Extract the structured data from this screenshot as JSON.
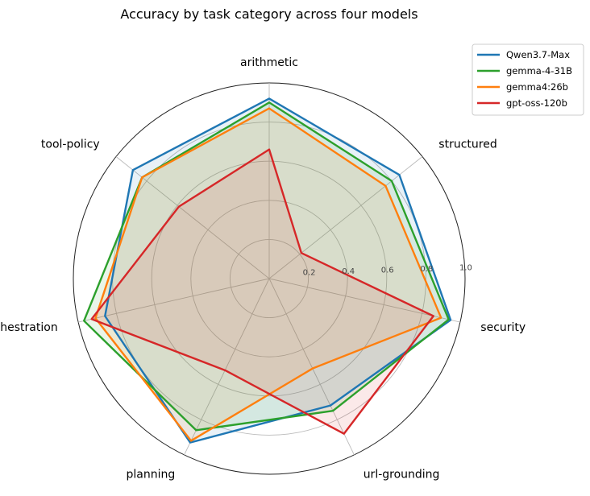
{
  "chart_data": {
    "type": "radar",
    "title": "Accuracy by task category across four models",
    "categories": [
      "arithmetic",
      "structured",
      "security",
      "url-grounding",
      "planning",
      "orchestration",
      "tool-policy"
    ],
    "rlim": [
      0,
      1.0
    ],
    "rticks": [
      0.2,
      0.4,
      0.6,
      0.8,
      1.0
    ],
    "rtick_labels": [
      "0.2",
      "0.4",
      "0.6",
      "0.8",
      "1.0"
    ],
    "grid": true,
    "legend": "top-right",
    "series": [
      {
        "name": "Qwen3.7-Max",
        "color": "#1f77b4",
        "values": [
          0.92,
          0.85,
          0.95,
          0.72,
          0.93,
          0.86,
          0.89
        ]
      },
      {
        "name": "gemma-4-31B",
        "color": "#2ca02c",
        "values": [
          0.9,
          0.8,
          0.94,
          0.75,
          0.86,
          0.97,
          0.83
        ]
      },
      {
        "name": "gemma4:26b",
        "color": "#ff7f0e",
        "values": [
          0.87,
          0.76,
          0.9,
          0.51,
          0.92,
          0.91,
          0.83
        ]
      },
      {
        "name": "gpt-oss-120b",
        "color": "#d62728",
        "values": [
          0.66,
          0.21,
          0.86,
          0.88,
          0.52,
          0.93,
          0.59
        ]
      }
    ]
  }
}
